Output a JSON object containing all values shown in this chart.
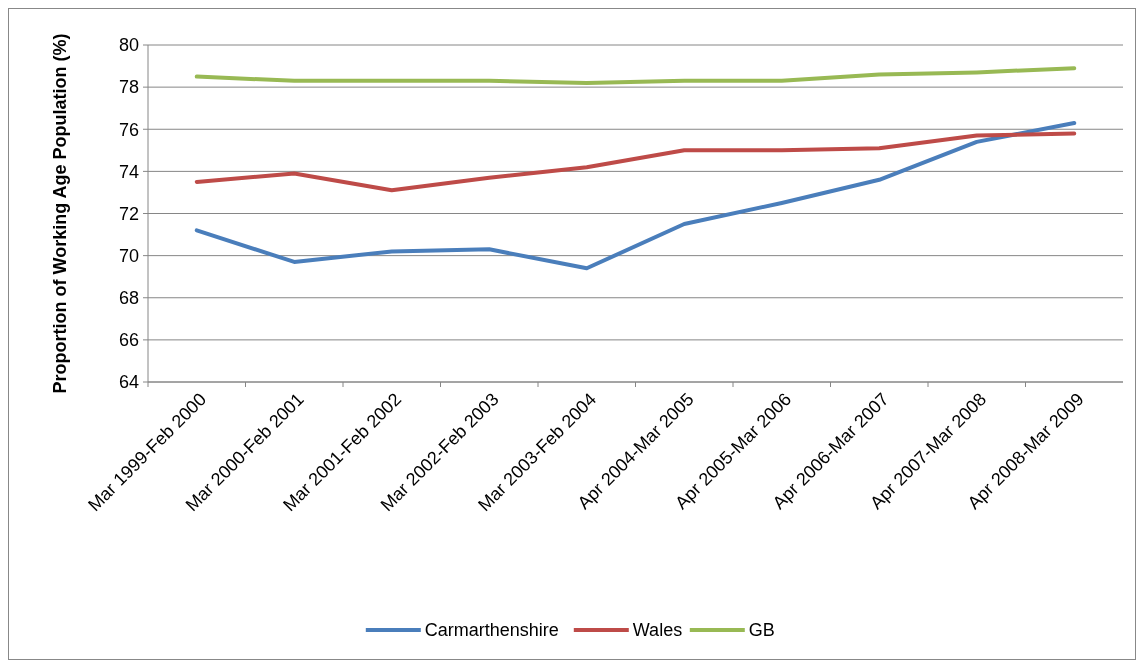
{
  "chart_data": {
    "type": "line",
    "ylabel": "Proportion of Working Age Population (%)",
    "categories": [
      "Mar 1999-Feb 2000",
      "Mar 2000-Feb 2001",
      "Mar 2001-Feb 2002",
      "Mar 2002-Feb 2003",
      "Mar 2003-Feb 2004",
      "Apr 2004-Mar 2005",
      "Apr 2005-Mar 2006",
      "Apr 2006-Mar 2007",
      "Apr 2007-Mar 2008",
      "Apr 2008-Mar 2009"
    ],
    "series": [
      {
        "name": "Carmarthenshire",
        "color": "#4a7ebb",
        "values": [
          71.2,
          69.7,
          70.2,
          70.3,
          69.4,
          71.5,
          72.5,
          73.6,
          75.4,
          76.3
        ]
      },
      {
        "name": "Wales",
        "color": "#be4b48",
        "values": [
          73.5,
          73.9,
          73.1,
          73.7,
          74.2,
          75.0,
          75.0,
          75.1,
          75.7,
          75.8
        ]
      },
      {
        "name": "GB",
        "color": "#98b954",
        "values": [
          78.5,
          78.3,
          78.3,
          78.3,
          78.2,
          78.3,
          78.3,
          78.6,
          78.7,
          78.9
        ]
      }
    ],
    "ylim": [
      64,
      80
    ],
    "yticks": [
      64,
      66,
      68,
      70,
      72,
      74,
      76,
      78,
      80
    ],
    "grid": "y",
    "legend": "bottom",
    "marker": "none",
    "line_style": "solid"
  }
}
